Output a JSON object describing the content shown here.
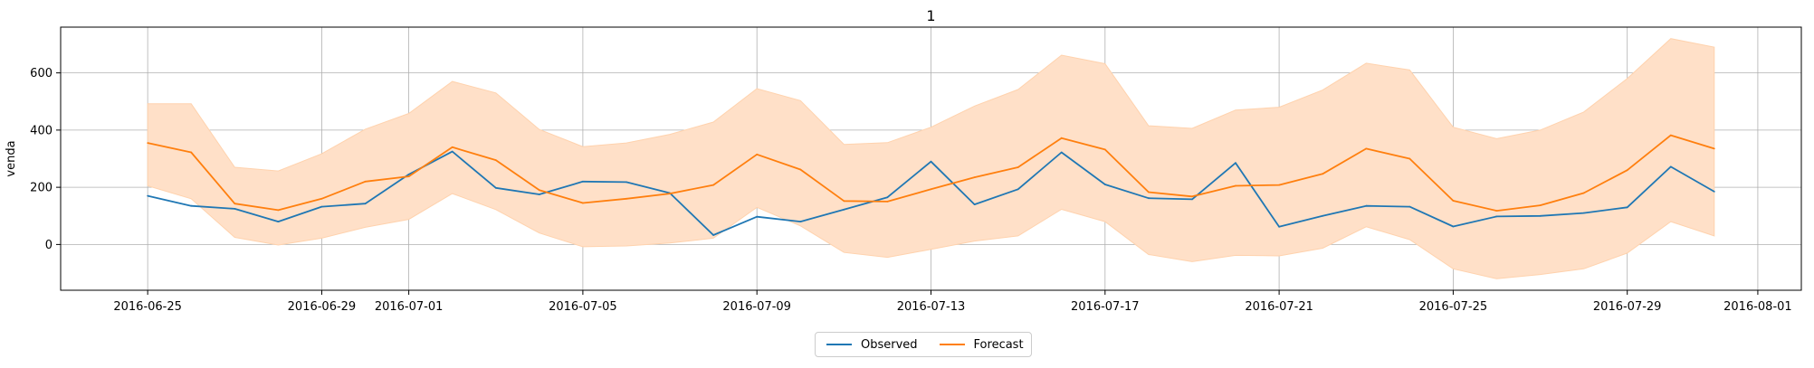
{
  "chart_data": {
    "type": "line",
    "title": "1",
    "xlabel": "",
    "ylabel": "venda",
    "x": [
      "2016-06-25",
      "2016-06-26",
      "2016-06-27",
      "2016-06-28",
      "2016-06-29",
      "2016-06-30",
      "2016-07-01",
      "2016-07-02",
      "2016-07-03",
      "2016-07-04",
      "2016-07-05",
      "2016-07-06",
      "2016-07-07",
      "2016-07-08",
      "2016-07-09",
      "2016-07-10",
      "2016-07-11",
      "2016-07-12",
      "2016-07-13",
      "2016-07-14",
      "2016-07-15",
      "2016-07-16",
      "2016-07-17",
      "2016-07-18",
      "2016-07-19",
      "2016-07-20",
      "2016-07-21",
      "2016-07-22",
      "2016-07-23",
      "2016-07-24",
      "2016-07-25",
      "2016-07-26",
      "2016-07-27",
      "2016-07-28",
      "2016-07-29",
      "2016-07-30",
      "2016-07-31"
    ],
    "series": [
      {
        "name": "Observed",
        "color": "#1f77b4",
        "values": [
          170,
          135,
          125,
          80,
          132,
          143,
          245,
          325,
          198,
          175,
          220,
          218,
          180,
          33,
          97,
          80,
          122,
          165,
          290,
          140,
          193,
          322,
          210,
          162,
          158,
          285,
          62,
          100,
          135,
          132,
          63,
          98,
          100,
          110,
          130,
          272,
          185
        ]
      },
      {
        "name": "Forecast",
        "color": "#ff7f0e",
        "values": [
          355,
          322,
          143,
          120,
          160,
          220,
          238,
          340,
          295,
          190,
          145,
          160,
          178,
          208,
          315,
          262,
          152,
          150,
          193,
          235,
          270,
          372,
          332,
          183,
          168,
          205,
          208,
          247,
          335,
          300,
          153,
          118,
          137,
          180,
          260,
          382,
          335
        ]
      }
    ],
    "band": {
      "color": "#ffe0c8",
      "upper": [
        492,
        492,
        270,
        257,
        317,
        403,
        458,
        570,
        530,
        402,
        342,
        355,
        385,
        428,
        545,
        503,
        350,
        356,
        410,
        484,
        542,
        662,
        632,
        415,
        406,
        470,
        480,
        540,
        634,
        610,
        410,
        370,
        400,
        463,
        580,
        720,
        690
      ],
      "lower": [
        205,
        160,
        25,
        -2,
        22,
        60,
        88,
        178,
        122,
        40,
        -8,
        -5,
        5,
        22,
        130,
        65,
        -28,
        -45,
        -17,
        12,
        30,
        123,
        80,
        -35,
        -60,
        -38,
        -40,
        -13,
        62,
        17,
        -85,
        -120,
        -105,
        -85,
        -30,
        80,
        30
      ]
    },
    "x_ticks": [
      "2016-06-25",
      "2016-06-29",
      "2016-07-01",
      "2016-07-05",
      "2016-07-09",
      "2016-07-13",
      "2016-07-17",
      "2016-07-21",
      "2016-07-25",
      "2016-07-29",
      "2016-08-01"
    ],
    "y_ticks": [
      0,
      200,
      400,
      600
    ],
    "xlim": [
      "2016-06-23",
      "2016-08-02"
    ],
    "ylim": [
      -160,
      760
    ],
    "grid": true,
    "legend_position": "bottom-center"
  }
}
